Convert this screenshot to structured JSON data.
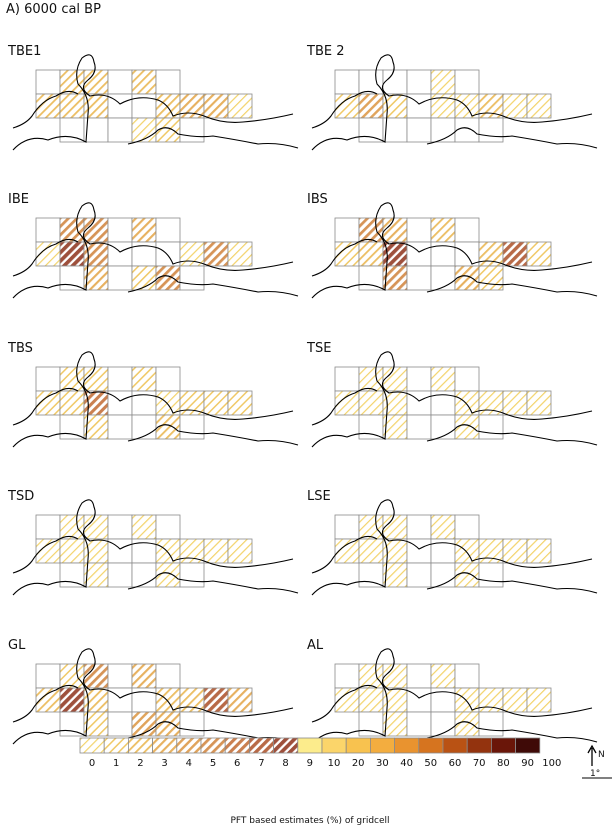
{
  "figure_title": "A) 6000 cal BP",
  "panels": [
    {
      "label": "TBE1",
      "cells": [
        [
          0,
          3,
          3,
          0,
          3,
          0
        ],
        [
          3,
          3,
          3,
          0,
          0,
          3,
          4,
          4,
          1
        ],
        [
          0,
          0,
          0,
          1,
          2,
          0
        ]
      ]
    },
    {
      "label": "TBE 2",
      "cells": [
        [
          0,
          0,
          0,
          0,
          1,
          0
        ],
        [
          2,
          5,
          2,
          0,
          1,
          1,
          3,
          1,
          1
        ],
        [
          0,
          0,
          0,
          0,
          0,
          0
        ]
      ]
    },
    {
      "label": "IBE",
      "cells": [
        [
          0,
          6,
          6,
          0,
          4,
          0
        ],
        [
          1,
          9,
          6,
          0,
          0,
          0,
          1,
          6,
          1
        ],
        [
          0,
          4,
          0,
          2,
          6,
          0
        ]
      ]
    },
    {
      "label": "IBS",
      "cells": [
        [
          0,
          6,
          4,
          0,
          3,
          0
        ],
        [
          2,
          3,
          9,
          0,
          0,
          0,
          3,
          8,
          2
        ],
        [
          0,
          6,
          0,
          0,
          4,
          2
        ]
      ]
    },
    {
      "label": "TBS",
      "cells": [
        [
          0,
          2,
          2,
          0,
          2,
          0
        ],
        [
          2,
          2,
          7,
          0,
          0,
          1,
          2,
          2,
          2
        ],
        [
          0,
          2,
          0,
          0,
          3,
          0
        ]
      ]
    },
    {
      "label": "TSE",
      "cells": [
        [
          0,
          1,
          1,
          0,
          1,
          0
        ],
        [
          1,
          1,
          1,
          0,
          0,
          1,
          1,
          1,
          1
        ],
        [
          0,
          1,
          0,
          0,
          1,
          0
        ]
      ]
    },
    {
      "label": "TSD",
      "cells": [
        [
          0,
          1,
          1,
          0,
          1,
          0
        ],
        [
          1,
          1,
          1,
          0,
          0,
          1,
          1,
          1,
          1
        ],
        [
          0,
          1,
          0,
          0,
          1,
          0
        ]
      ]
    },
    {
      "label": "LSE",
      "cells": [
        [
          0,
          1,
          1,
          0,
          1,
          0
        ],
        [
          1,
          1,
          1,
          0,
          0,
          1,
          1,
          1,
          1
        ],
        [
          0,
          1,
          0,
          0,
          1,
          0
        ]
      ]
    },
    {
      "label": "GL",
      "cells": [
        [
          0,
          2,
          6,
          0,
          4,
          0
        ],
        [
          3,
          9,
          3,
          0,
          0,
          3,
          3,
          8,
          4
        ],
        [
          0,
          2,
          0,
          5,
          4,
          0
        ]
      ]
    },
    {
      "label": "AL",
      "cells": [
        [
          0,
          1,
          1,
          0,
          1,
          0
        ],
        [
          1,
          1,
          1,
          0,
          0,
          1,
          1,
          1,
          1
        ],
        [
          0,
          1,
          0,
          0,
          1,
          0
        ]
      ]
    }
  ],
  "legend": {
    "ticks": [
      "0",
      "1",
      "2",
      "3",
      "4",
      "5",
      "6",
      "7",
      "8",
      "9",
      "10",
      "20",
      "30",
      "40",
      "50",
      "60",
      "70",
      "80",
      "90",
      "100"
    ],
    "caption": "PFT based estimates (%) of gridcell",
    "hatch_colors": [
      "#f3d36a",
      "#f0c967",
      "#ecbe63",
      "#e7b160",
      "#e0a45c",
      "#d69457",
      "#ca8050",
      "#b86a47",
      "#9e503c",
      "#7e3626"
    ],
    "solid_colors": [
      "#fcec8c",
      "#fbd56a",
      "#f8c24f",
      "#f3ad3f",
      "#e9932f",
      "#d6741f",
      "#b95214",
      "#93330e",
      "#6a1609",
      "#3f0a07"
    ],
    "north_label": "N",
    "scale_label": "1°"
  }
}
